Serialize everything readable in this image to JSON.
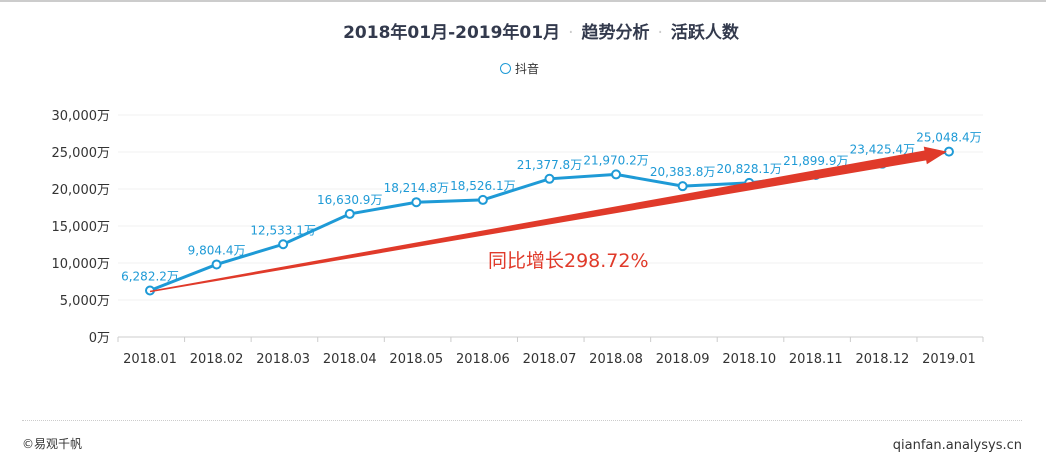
{
  "title": {
    "period": "2018年01月-2019年01月",
    "section": "趋势分析",
    "metric": "活跃人数"
  },
  "footer": {
    "copyright": "©易观千帆",
    "site": "qianfan.analysys.cn"
  },
  "chart_data": {
    "type": "line",
    "title": "2018年01月-2019年01月 · 趋势分析 · 活跃人数",
    "categories": [
      "2018.01",
      "2018.02",
      "2018.03",
      "2018.04",
      "2018.05",
      "2018.06",
      "2018.07",
      "2018.08",
      "2018.09",
      "2018.10",
      "2018.11",
      "2018.12",
      "2019.01"
    ],
    "series": [
      {
        "name": "抖音",
        "color": "#1e9ad6",
        "values": [
          6282.2,
          9804.4,
          12533.1,
          16630.9,
          18214.8,
          18526.1,
          21377.8,
          21970.2,
          20383.8,
          20828.1,
          21899.9,
          23425.4,
          25048.4
        ],
        "labels": [
          "6,282.2万",
          "9,804.4万",
          "12,533.1万",
          "16,630.9万",
          "18,214.8万",
          "18,526.1万",
          "21,377.8万",
          "21,970.2万",
          "20,383.8万",
          "20,828.1万",
          "21,899.9万",
          "23,425.4万",
          "25,048.4万"
        ]
      }
    ],
    "yticks": [
      "0万",
      "5,000万",
      "10,000万",
      "15,000万",
      "20,000万",
      "25,000万",
      "30,000万"
    ],
    "ylim": [
      0,
      30000
    ],
    "grid": true,
    "legend": "top-center",
    "annotation": {
      "text": "同比增长298.72%",
      "color": "#e03a2a",
      "arrow_from": "2018.01",
      "arrow_to": "2019.01"
    }
  }
}
